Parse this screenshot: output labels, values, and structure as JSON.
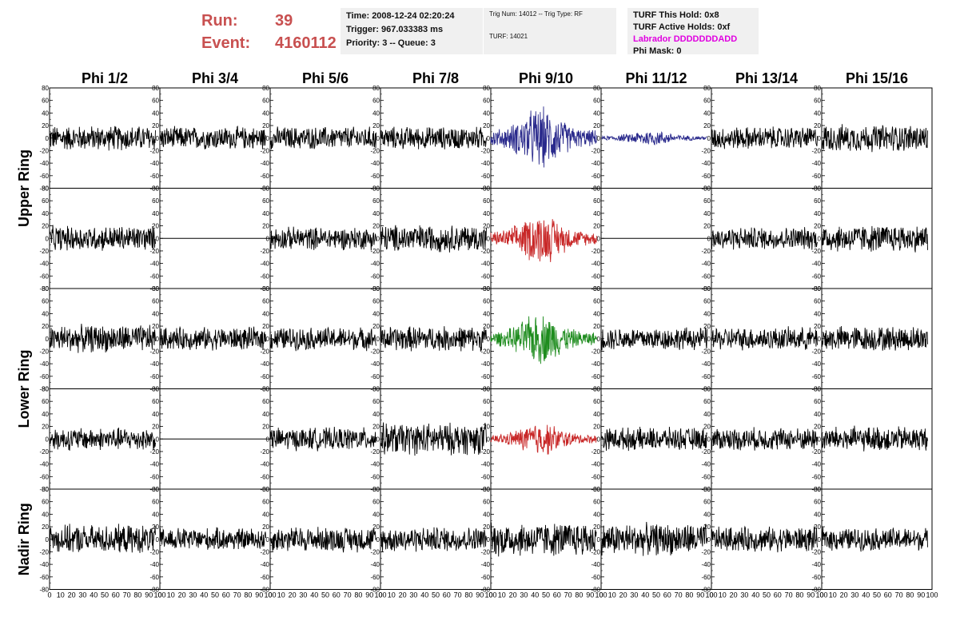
{
  "header": {
    "run_label": "Run:",
    "run_value": "39",
    "event_label": "Event:",
    "event_value": "4160112",
    "time": "Time: 2008-12-24 02:20:24",
    "trigger": "Trigger: 967.033383 ms",
    "priority": "Priority: 3 -- Queue: 3",
    "trig_num": "Trig Num: 14012 -- Trig Type: RF",
    "turf": "TURF: 14021",
    "turf_this_hold": "TURF This Hold: 0x8",
    "turf_active_holds": "TURF Active Holds: 0xf",
    "labrador": "Labrador DDDDDDDADD",
    "phi_mask": "Phi Mask: 0"
  },
  "colors": {
    "run_text": "#c85050",
    "labrador_text": "#e000e0",
    "trace_default": "#000000",
    "trace_blue": "#2a2a8c",
    "trace_red": "#c82828",
    "trace_green": "#1e8c1e",
    "info_bg": "#f0f0f0"
  },
  "chart_data": {
    "type": "line",
    "columns": [
      "Phi 1/2",
      "Phi 3/4",
      "Phi 5/6",
      "Phi 7/8",
      "Phi 9/10",
      "Phi 11/12",
      "Phi 13/14",
      "Phi 15/16"
    ],
    "ring_labels": [
      "Upper Ring",
      "Lower Ring",
      "Nadir Ring"
    ],
    "rows": 5,
    "xlim": [
      0,
      100
    ],
    "ylim": [
      -80,
      80
    ],
    "y_ticks": [
      -80,
      -60,
      -40,
      -20,
      0,
      20,
      40,
      60,
      80
    ],
    "x_tick_labels": [
      "0",
      "10",
      "20",
      "30",
      "40",
      "50",
      "60",
      "70",
      "80",
      "90",
      "100"
    ],
    "x_max_per_panel": 100,
    "panels": [
      [
        "noise:22",
        "noise:20",
        "noise:20",
        "noise:20",
        "burst:blue:55",
        "burst:blue:14",
        "noise:20",
        "noise:24"
      ],
      [
        "noise:22",
        "flat",
        "noise:20",
        "noise:24",
        "burst:red:45",
        "flat",
        "noise:20",
        "noise:24"
      ],
      [
        "noise:24",
        "noise:20",
        "noise:20",
        "noise:22",
        "burst:green:45",
        "noise:20",
        "noise:20",
        "noise:22"
      ],
      [
        "noise:20",
        "flat",
        "noise:20",
        "noise:28",
        "burst:red:30",
        "noise:20",
        "noise:20",
        "noise:22"
      ],
      [
        "noise:25",
        "noise:20",
        "noise:22",
        "noise:22",
        "noise:30",
        "noise:28",
        "noise:22",
        "noise:20"
      ]
    ]
  }
}
